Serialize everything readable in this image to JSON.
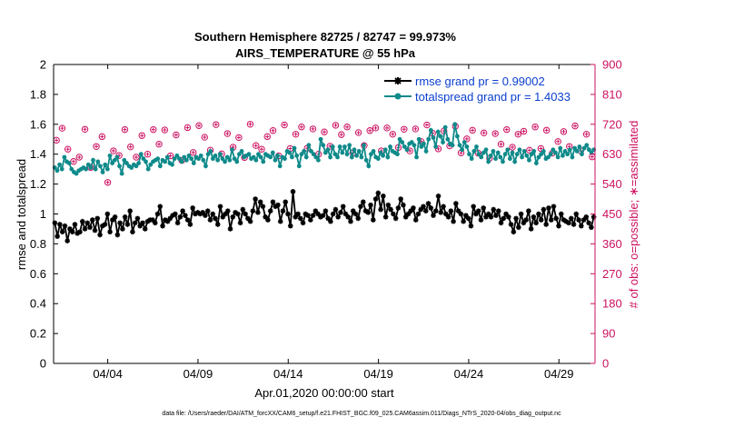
{
  "chart_data": {
    "type": "line",
    "title": "Southern Hemisphere 82725 / 82747 = 99.973%",
    "subtitle": "AIRS_TEMPERATURE @ 55 hPa",
    "xlabel": "Apr.01,2020 00:00:00 start",
    "ylabel_left": "rmse and totalspread",
    "ylabel_right": "# of obs: o=possible; ∗=assimilated",
    "x_ticks": [
      "04/04",
      "04/09",
      "04/14",
      "04/19",
      "04/24",
      "04/29"
    ],
    "x_tick_days": [
      4,
      9,
      14,
      19,
      24,
      29
    ],
    "xlim": [
      1,
      31
    ],
    "ylim_left": [
      0,
      2
    ],
    "ylim_right": [
      0,
      900
    ],
    "y_ticks_left": [
      "0",
      "0.2",
      "0.4",
      "0.6",
      "0.8",
      "1",
      "1.2",
      "1.4",
      "1.6",
      "1.8",
      "2"
    ],
    "y_ticks_right": [
      "0",
      "90",
      "180",
      "270",
      "360",
      "450",
      "540",
      "630",
      "720",
      "810",
      "900"
    ],
    "legend_position": "top-right",
    "footer": "data file: /Users/raeder/DAI/ATM_forcXX/CAM6_setup/f.e21.FHIST_BGC.f09_025.CAM6assim.011/Diags_NTrS_2020-04/obs_diag_output.nc",
    "colors": {
      "rmse": "#000000",
      "spread": "#0f8a8a",
      "obs": "#cc1060",
      "axis_right": "#cc1060"
    },
    "series": [
      {
        "name": "rmse grand pr = 0.99002",
        "key": "rmse",
        "values": [
          0.94,
          0.85,
          0.93,
          0.88,
          0.92,
          0.82,
          0.9,
          0.88,
          0.93,
          0.87,
          0.88,
          0.95,
          0.9,
          0.94,
          0.91,
          0.96,
          0.89,
          0.97,
          0.86,
          0.92,
          0.93,
          1.0,
          0.88,
          0.96,
          0.98,
          0.86,
          0.94,
          0.9,
          0.98,
          0.93,
          1.02,
          0.88,
          0.94,
          0.97,
          0.92,
          0.94,
          0.9,
          0.95,
          0.96,
          0.96,
          0.94,
          1.0,
          1.05,
          0.92,
          0.96,
          0.95,
          0.97,
          0.99,
          1.0,
          0.94,
          0.98,
          1.02,
          0.99,
          0.96,
          0.93,
          1.04,
          1.0,
          1.01,
          1.0,
          1.01,
          0.99,
          1.02,
          0.96,
          1.0,
          0.97,
          0.93,
          1.05,
          0.98,
          1.0,
          1.02,
          0.9,
          0.98,
          1.01,
          1.0,
          0.94,
          1.03,
          1.0,
          0.97,
          0.95,
          1.02,
          1.1,
          1.01,
          1.08,
          1.05,
          0.98,
          0.96,
          1.02,
          1.08,
          1.05,
          1.06,
          0.95,
          1.02,
          1.08,
          1.0,
          0.92,
          1.15,
          0.98,
          1.0,
          0.97,
          0.94,
          1.0,
          0.99,
          0.96,
          0.99,
          1.02,
          1.0,
          0.98,
          0.99,
          1.02,
          0.97,
          0.95,
          1.0,
          1.03,
          0.98,
          1.01,
          1.05,
          1.0,
          0.98,
          0.95,
          1.02,
          1.0,
          0.97,
          1.05,
          1.08,
          1.02,
          1.01,
          1.06,
          0.96,
          1.1,
          1.14,
          1.03,
          1.12,
          0.98,
          1.06,
          1.03,
          1.0,
          0.97,
          1.04,
          1.1,
          1.06,
          0.98,
          1.0,
          1.02,
          1.04,
          0.96,
          1.0,
          1.03,
          1.05,
          1.02,
          1.07,
          1.04,
          0.99,
          1.02,
          1.12,
          1.01,
          1.05,
          1.0,
          0.98,
          1.02,
          0.95,
          1.07,
          1.02,
          1.0,
          0.95,
          0.99,
          0.97,
          0.92,
          1.05,
          1.0,
          1.02,
          0.96,
          1.04,
          0.98,
          1.0,
          0.98,
          1.03,
          0.99,
          1.02,
          0.94,
          0.97,
          1.0,
          0.98,
          0.93,
          0.88,
          0.97,
          0.91,
          1.0,
          0.94,
          0.96,
          1.02,
          0.9,
          0.98,
          0.94,
          1.0,
          0.96,
          1.03,
          0.93,
          1.04,
          0.96,
          1.05,
          0.97,
          0.92,
          1.0,
          0.96,
          0.95,
          0.94,
          0.97,
          0.93,
          1.0,
          0.96,
          0.92,
          0.96,
          0.98,
          0.94,
          0.91,
          0.98
        ]
      },
      {
        "name": "totalspread grand pr = 1.4033",
        "key": "spread",
        "values": [
          1.31,
          1.29,
          1.33,
          1.3,
          1.38,
          1.35,
          1.34,
          1.3,
          1.28,
          1.27,
          1.29,
          1.3,
          1.31,
          1.3,
          1.33,
          1.31,
          1.36,
          1.3,
          1.35,
          1.32,
          1.28,
          1.33,
          1.3,
          1.39,
          1.34,
          1.36,
          1.38,
          1.32,
          1.27,
          1.36,
          1.34,
          1.32,
          1.31,
          1.33,
          1.32,
          1.34,
          1.4,
          1.37,
          1.35,
          1.3,
          1.33,
          1.35,
          1.36,
          1.37,
          1.32,
          1.36,
          1.35,
          1.38,
          1.34,
          1.33,
          1.37,
          1.39,
          1.37,
          1.35,
          1.38,
          1.36,
          1.39,
          1.37,
          1.34,
          1.38,
          1.37,
          1.39,
          1.36,
          1.32,
          1.4,
          1.42,
          1.37,
          1.39,
          1.36,
          1.4,
          1.37,
          1.35,
          1.38,
          1.36,
          1.43,
          1.37,
          1.35,
          1.4,
          1.42,
          1.38,
          1.39,
          1.4,
          1.37,
          1.38,
          1.36,
          1.4,
          1.38,
          1.35,
          1.4,
          1.39,
          1.38,
          1.41,
          1.36,
          1.39,
          1.32,
          1.38,
          1.37,
          1.42,
          1.41,
          1.38,
          1.44,
          1.39,
          1.32,
          1.4,
          1.42,
          1.38,
          1.46,
          1.42,
          1.4,
          1.38,
          1.36,
          1.5,
          1.46,
          1.41,
          1.43,
          1.38,
          1.45,
          1.4,
          1.38,
          1.45,
          1.41,
          1.45,
          1.4,
          1.46,
          1.38,
          1.43,
          1.39,
          1.42,
          1.38,
          1.46,
          1.36,
          1.32,
          1.4,
          1.42,
          1.38,
          1.37,
          1.41,
          1.39,
          1.43,
          1.38,
          1.45,
          1.42,
          1.41,
          1.4,
          1.5,
          1.48,
          1.45,
          1.43,
          1.47,
          1.48,
          1.46,
          1.38,
          1.5,
          1.45,
          1.47,
          1.42,
          1.5,
          1.56,
          1.51,
          1.45,
          1.55,
          1.52,
          1.48,
          1.58,
          1.5,
          1.47,
          1.46,
          1.6,
          1.52,
          1.46,
          1.43,
          1.48,
          1.45,
          1.4,
          1.37,
          1.42,
          1.45,
          1.4,
          1.38,
          1.41,
          1.43,
          1.35,
          1.39,
          1.42,
          1.37,
          1.41,
          1.38,
          1.35,
          1.4,
          1.43,
          1.37,
          1.41,
          1.35,
          1.4,
          1.43,
          1.38,
          1.42,
          1.39,
          1.36,
          1.4,
          1.42,
          1.34,
          1.38,
          1.4,
          1.42,
          1.37,
          1.38,
          1.4,
          1.43,
          1.41,
          1.38,
          1.44,
          1.39,
          1.42,
          1.4,
          1.43,
          1.38,
          1.44,
          1.42,
          1.45,
          1.4,
          1.44,
          1.46,
          1.43,
          1.41,
          1.43
        ]
      }
    ],
    "obs_possible_and_assimilated": [
      672,
      708,
      645,
      608,
      621,
      705,
      590,
      653,
      683,
      545,
      640,
      626,
      704,
      652,
      621,
      686,
      630,
      704,
      660,
      703,
      625,
      688,
      611,
      710,
      635,
      716,
      681,
      642,
      719,
      631,
      692,
      651,
      680,
      620,
      720,
      656,
      645,
      683,
      701,
      625,
      718,
      647,
      690,
      712,
      648,
      706,
      630,
      697,
      654,
      717,
      689,
      712,
      634,
      695,
      656,
      701,
      709,
      640,
      709,
      690,
      650,
      705,
      640,
      706,
      668,
      718,
      693,
      646,
      700,
      655,
      714,
      634,
      676,
      702,
      633,
      694,
      618,
      692,
      660,
      704,
      651,
      690,
      699,
      642,
      712,
      647,
      702,
      633,
      668,
      698,
      653,
      715,
      640,
      690,
      622
    ]
  }
}
